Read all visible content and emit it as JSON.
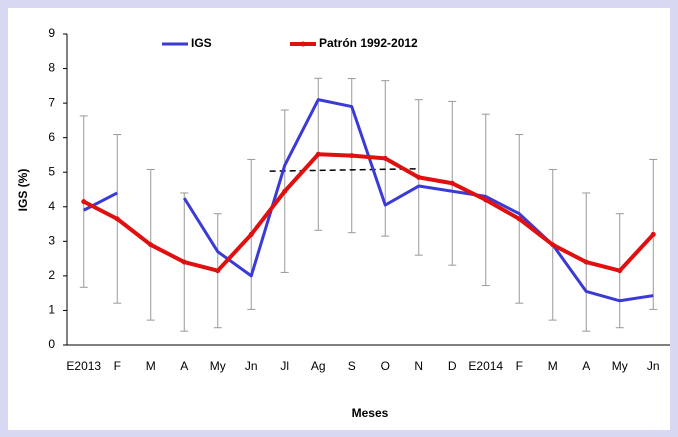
{
  "chart_data": {
    "type": "line",
    "x_label": "Meses",
    "y_label": "IGS (%)",
    "categories": [
      "E2013",
      "F",
      "M",
      "A",
      "My",
      "Jn",
      "Jl",
      "Ag",
      "S",
      "O",
      "N",
      "D",
      "E2014",
      "F",
      "M",
      "A",
      "My",
      "Jn"
    ],
    "series": [
      {
        "name": "IGS",
        "color": "#3a3ad6",
        "marker": false,
        "values": [
          3.9,
          4.4,
          null,
          4.25,
          2.7,
          2.0,
          5.2,
          7.1,
          6.9,
          4.05,
          4.6,
          4.45,
          4.3,
          3.8,
          2.9,
          1.55,
          1.28,
          1.43
        ]
      },
      {
        "name": "Patrón 1992-2012",
        "color": "#e01010",
        "marker": true,
        "values": [
          4.15,
          3.65,
          2.9,
          2.4,
          2.15,
          3.2,
          4.45,
          5.52,
          5.48,
          5.4,
          4.85,
          4.68,
          4.2,
          3.65,
          2.9,
          2.4,
          2.15,
          3.2
        ],
        "errors": [
          2.48,
          2.44,
          2.18,
          2.0,
          1.65,
          2.17,
          2.35,
          2.2,
          2.23,
          2.25,
          2.25,
          2.37,
          2.48,
          2.44,
          2.18,
          2.0,
          1.65,
          2.17
        ]
      }
    ],
    "dashed_line": {
      "from": "Jl",
      "to": "N",
      "values": [
        5.03,
        5.1
      ]
    },
    "ylim": [
      0,
      9
    ],
    "yticks": [
      0,
      1,
      2,
      3,
      4,
      5,
      6,
      7,
      8,
      9
    ],
    "grid": false
  }
}
